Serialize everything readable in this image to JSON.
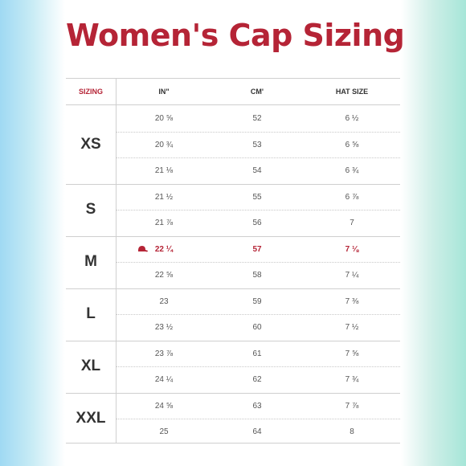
{
  "title": "Women's Cap Sizing",
  "headers": [
    "SIZING",
    "IN\"",
    "CM'",
    "HAT SIZE"
  ],
  "accent_color": "#b52436",
  "groups": [
    {
      "size": "XS",
      "rows": [
        {
          "in": "20 ⅝",
          "cm": "52",
          "hat": "6 ½"
        },
        {
          "in": "20 ¾",
          "cm": "53",
          "hat": "6 ⅝"
        },
        {
          "in": "21 ⅛",
          "cm": "54",
          "hat": "6 ¾"
        }
      ]
    },
    {
      "size": "S",
      "rows": [
        {
          "in": "21 ½",
          "cm": "55",
          "hat": "6 ⅞"
        },
        {
          "in": "21 ⅞",
          "cm": "56",
          "hat": "7"
        }
      ]
    },
    {
      "size": "M",
      "rows": [
        {
          "in": "22 ¼",
          "cm": "57",
          "hat": "7 ⅛",
          "highlight": true,
          "icon": "cap-icon"
        },
        {
          "in": "22 ⅝",
          "cm": "58",
          "hat": "7 ¼"
        }
      ]
    },
    {
      "size": "L",
      "rows": [
        {
          "in": "23",
          "cm": "59",
          "hat": "7 ⅜"
        },
        {
          "in": "23 ½",
          "cm": "60",
          "hat": "7 ½"
        }
      ]
    },
    {
      "size": "XL",
      "rows": [
        {
          "in": "23 ⅞",
          "cm": "61",
          "hat": "7 ⅝"
        },
        {
          "in": "24 ¼",
          "cm": "62",
          "hat": "7 ¾"
        }
      ]
    },
    {
      "size": "XXL",
      "rows": [
        {
          "in": "24 ⅝",
          "cm": "63",
          "hat": "7 ⅞"
        },
        {
          "in": "25",
          "cm": "64",
          "hat": "8"
        }
      ]
    }
  ]
}
